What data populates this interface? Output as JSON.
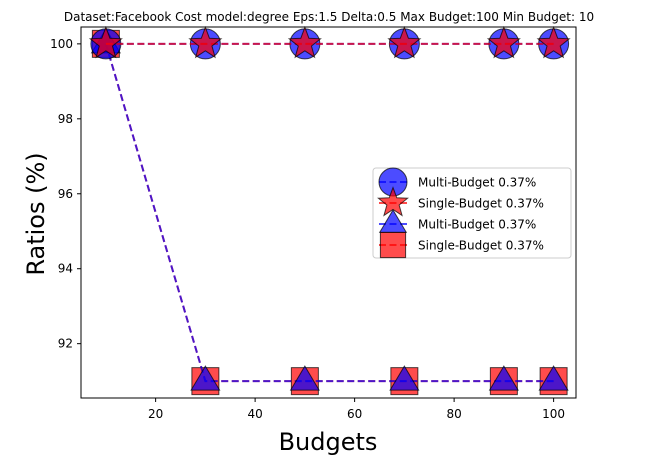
{
  "chart_data": {
    "type": "line",
    "title": "Dataset:Facebook Cost model:degree Eps:1.5 Delta:0.5 Max Budget:100 Min Budget: 10",
    "xlabel": "Budgets",
    "ylabel": "Ratios (%)",
    "x": [
      10,
      30,
      50,
      70,
      90,
      100
    ],
    "xlim": [
      5,
      104.5
    ],
    "ylim": [
      90.55,
      100.45
    ],
    "xticks": [
      20,
      40,
      60,
      80,
      100
    ],
    "yticks": [
      92,
      94,
      96,
      98,
      100
    ],
    "grid": false,
    "legend_position": "center-right",
    "series": [
      {
        "name": "Multi-Budget 0.37%",
        "marker": "circle",
        "marker_color": "#0000ff",
        "line_color": "#0000ff",
        "values": [
          100,
          100,
          100,
          100,
          100,
          100
        ]
      },
      {
        "name": "Single-Budget 0.37%",
        "marker": "star",
        "marker_color": "#ff0000",
        "line_color": "#ff0000",
        "values": [
          100,
          100,
          100,
          100,
          100,
          100
        ]
      },
      {
        "name": "Multi-Budget 0.37%",
        "marker": "triangle",
        "marker_color": "#0000ff",
        "line_color": "#0000ff",
        "values": [
          100,
          91,
          91,
          91,
          91,
          91
        ]
      },
      {
        "name": "Single-Budget 0.37%",
        "marker": "square",
        "marker_color": "#ff0000",
        "line_color": "#ff0000",
        "values": [
          100,
          91,
          91,
          91,
          91,
          91
        ]
      }
    ]
  }
}
